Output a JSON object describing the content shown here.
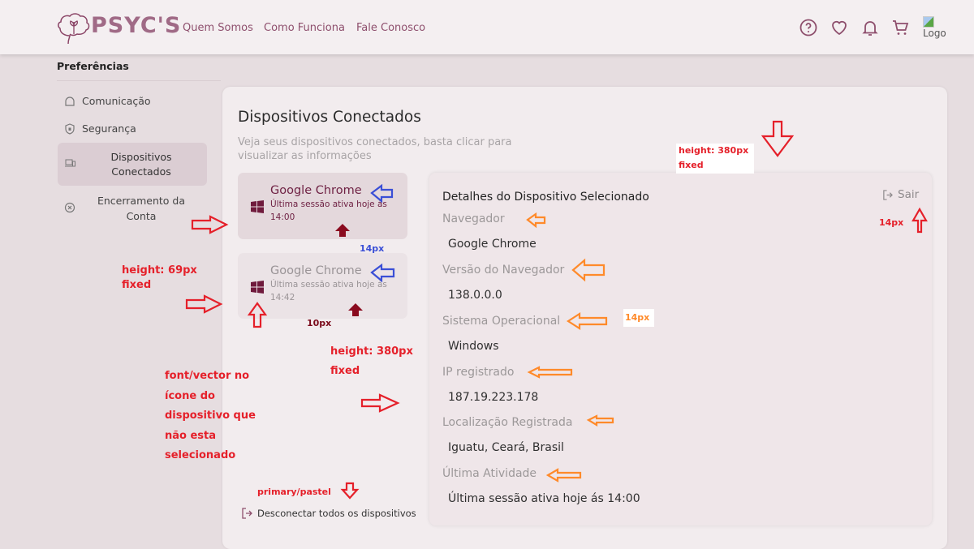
{
  "header": {
    "logo": "PSYC'S",
    "nav": [
      "Quem Somos",
      "Como Funciona",
      "Fale Conosco"
    ],
    "icons": [
      "help-icon",
      "heart-icon",
      "bell-icon",
      "cart-icon"
    ],
    "avatar_alt": "Logo"
  },
  "sidebar": {
    "heading": "Preferências",
    "items": [
      {
        "label": "Comunicação",
        "icon": "chat-icon"
      },
      {
        "label": "Segurança",
        "icon": "shield-icon"
      },
      {
        "label": "Dispositivos Conectados",
        "icon": "devices-icon",
        "selected": true
      },
      {
        "label": "Encerramento da Conta",
        "icon": "close-circle-icon"
      }
    ]
  },
  "main": {
    "title": "Dispositivos Conectados",
    "subtitle": "Veja seus dispositivos conectados, basta clicar para visualizar as informações",
    "devices": [
      {
        "name": "Google Chrome",
        "session": "Última sessão ativa hoje ás 14:00",
        "icon": "windows-icon",
        "selected": true
      },
      {
        "name": "Google Chrome",
        "session": "Última sessão ativa hoje ás 14:42",
        "icon": "windows-icon",
        "selected": false
      }
    ],
    "disconnect_all": "Desconectar todos os dispositivos",
    "details": {
      "title": "Detalhes do Dispositivo Selecionado",
      "logout": "Sair",
      "fields": [
        {
          "label": "Navegador",
          "value": "Google Chrome"
        },
        {
          "label": "Versão do Navegador",
          "value": "138.0.0.0"
        },
        {
          "label": "Sistema Operacional",
          "value": "Windows"
        },
        {
          "label": "IP registrado",
          "value": "187.19.223.178"
        },
        {
          "label": "Localização Registrada",
          "value": "Iguatu, Ceará, Brasil"
        },
        {
          "label": "Última Atividade",
          "value": "Última sessão ativa hoje ás 14:00"
        }
      ]
    }
  },
  "annotations": {
    "height_380_top": "height: 380px fixed",
    "px14_right": "14px",
    "px14_blue": "14px",
    "height_69": "height: 69px fixed",
    "px10": "10px",
    "px14_orange": "14px",
    "height_380_mid": "height: 380px fixed",
    "icon_note": "font/vector no ícone do dispositivo que não esta selecionado",
    "primary": "primary/pastel"
  },
  "colors": {
    "primary": "#8e4f6d",
    "device_selected": "#6f2244",
    "annotation_red": "#e5202a",
    "annotation_orange": "#ff8a2a",
    "annotation_blue": "#3a4fd6"
  }
}
